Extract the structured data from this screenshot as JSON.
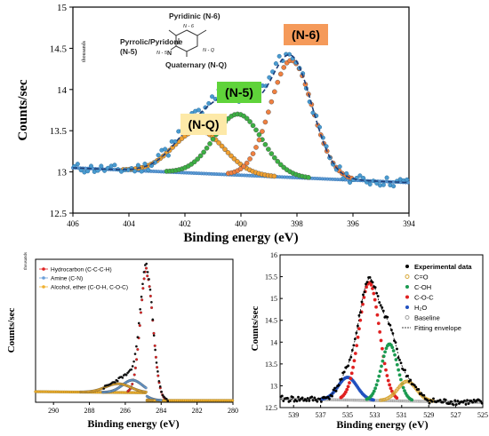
{
  "chart_data": [
    {
      "type": "scatter",
      "title": "",
      "xlabel": "Binding energy (eV)",
      "ylabel": "Counts/sec",
      "y_multiplier_label": "thousands",
      "xlim": [
        406,
        394
      ],
      "ylim": [
        12.5,
        15
      ],
      "x_ticks": [
        "406",
        "404",
        "402",
        "400",
        "398",
        "396",
        "394"
      ],
      "y_ticks": [
        "12.5",
        "13",
        "13.5",
        "14",
        "14.5",
        "15"
      ],
      "peaks": [
        {
          "name": "(N-Q)",
          "center": 401.5,
          "height": 0.52,
          "sigma": 0.9,
          "color": "#f0a030",
          "label_color": "#fde9a8"
        },
        {
          "name": "(N-5)",
          "center": 400.1,
          "height": 0.74,
          "sigma": 0.85,
          "color": "#3cb043",
          "label_color": "#5fd33a"
        },
        {
          "name": "(N-6)",
          "center": 398.2,
          "height": 1.42,
          "sigma": 0.75,
          "color": "#f08040",
          "label_color": "#f59a5a"
        }
      ],
      "baseline": {
        "start": 13.05,
        "end": 12.87
      },
      "annotations": {
        "pyridinic": "Pyridinic (N-6)",
        "pyrrolic": "Pyrrolic/Pyridone",
        "pyrrolic_n5": "(N-5)",
        "quaternary": "Quaternary (N-Q)",
        "struct_n6": "N - 6",
        "struct_n5": "N - 5",
        "struct_nq": "N - Q",
        "struct_n": "N"
      }
    },
    {
      "type": "scatter",
      "title": "",
      "xlabel": "Binding energy (eV)",
      "ylabel": "Counts/sec",
      "y_multiplier_label": "thousands",
      "xlim": [
        291,
        280
      ],
      "x_ticks": [
        "290",
        "288",
        "286",
        "284",
        "282",
        "280"
      ],
      "legend": [
        {
          "name": "Hydrocarbon (C-C-C-H)",
          "color": "#e02020"
        },
        {
          "name": "Amine (C-N)",
          "color": "#6aa0d8"
        },
        {
          "name": "Alcohol, ether (C-O-H, C-O-C)",
          "color": "#f0b030"
        }
      ],
      "peaks": [
        {
          "name": "Hydrocarbon (C-C-C-H)",
          "center": 284.8,
          "height": 1.0,
          "sigma": 0.35,
          "color": "#e02020"
        },
        {
          "name": "Amine (C-N)",
          "center": 285.6,
          "height": 0.1,
          "sigma": 0.55,
          "color": "#6aa0d8"
        },
        {
          "name": "Alcohol, ether (C-O-H, C-O-C)",
          "center": 286.4,
          "height": 0.07,
          "sigma": 0.7,
          "color": "#f0b030"
        }
      ],
      "legend_position": "top-left"
    },
    {
      "type": "scatter",
      "title": "",
      "xlabel": "Binding energy (eV)",
      "ylabel": "Counts/sec",
      "y_multiplier_label": "thousands",
      "xlim": [
        540,
        525
      ],
      "ylim": [
        12.5,
        16
      ],
      "x_ticks": [
        "539",
        "537",
        "535",
        "533",
        "531",
        "529",
        "527",
        "525"
      ],
      "y_ticks": [
        "12.5",
        "13",
        "13.5",
        "14",
        "14.5",
        "15",
        "15.5",
        "16"
      ],
      "legend": [
        {
          "name": "Experimental data",
          "color": "#000000",
          "marker": "dot"
        },
        {
          "name": "C=O",
          "color": "#d8a838",
          "marker": "ring"
        },
        {
          "name": "C-OH",
          "color": "#1a9a50",
          "marker": "dot"
        },
        {
          "name": "C-O-C",
          "color": "#e02020",
          "marker": "dot"
        },
        {
          "name": "H₂O",
          "color": "#2050c0",
          "marker": "dot"
        },
        {
          "name": "Baseline",
          "color": "#a0a0a0",
          "marker": "ring"
        },
        {
          "name": "Fitting envelope",
          "color": "#000000",
          "marker": "dash"
        }
      ],
      "peaks": [
        {
          "name": "H₂O",
          "center": 535.0,
          "height": 0.52,
          "sigma": 0.7,
          "color": "#2050c0"
        },
        {
          "name": "C-O-C",
          "center": 533.4,
          "height": 2.7,
          "sigma": 0.75,
          "color": "#e02020"
        },
        {
          "name": "C-OH",
          "center": 531.9,
          "height": 1.3,
          "sigma": 0.6,
          "color": "#1a9a50"
        },
        {
          "name": "C=O",
          "center": 530.6,
          "height": 0.45,
          "sigma": 0.7,
          "color": "#d8a838"
        }
      ],
      "baseline": {
        "start": 12.7,
        "end": 12.62
      },
      "legend_position": "top-right"
    }
  ]
}
